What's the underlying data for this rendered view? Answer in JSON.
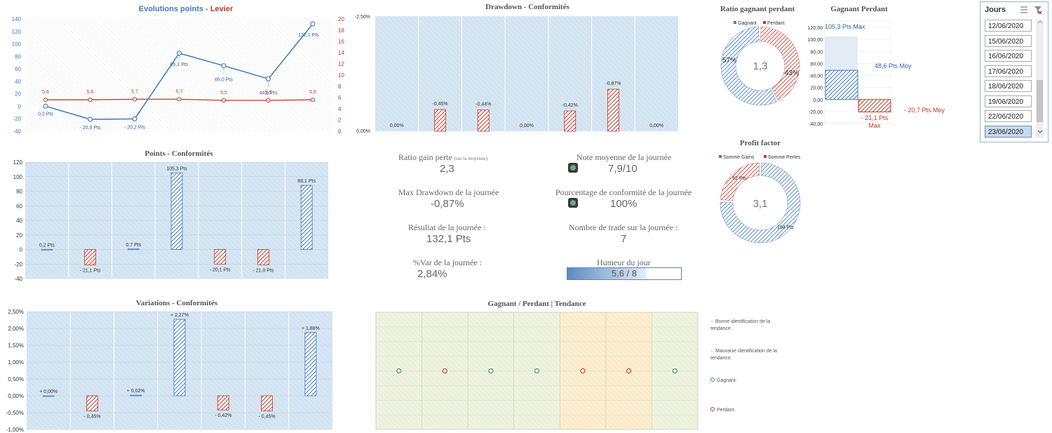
{
  "colors": {
    "blue": "#3f79c6",
    "red": "#c0392b",
    "panel": "#cfe0ef",
    "green": "#3a9a4a"
  },
  "chart_data": [
    {
      "id": "evolution",
      "type": "line",
      "title_part1": "Evolutions points - ",
      "title_part2": "Levier",
      "y_ticks": [
        "140",
        "120",
        "100",
        "80",
        "60",
        "40",
        "20",
        "0",
        "-20",
        "-40"
      ],
      "y2_ticks": [
        "20",
        "18",
        "16",
        "14",
        "12",
        "10",
        "8",
        "6",
        "4",
        "2",
        "0"
      ],
      "ylim": [
        -40,
        140
      ],
      "y2lim": [
        0,
        20
      ],
      "series": [
        {
          "name": "",
          "values": [
            0.2,
            -20.9,
            -20.2,
            85.1,
            65.0,
            44.0,
            132.1
          ],
          "labels": [
            "0,2 Pts",
            "- 20,9 Pts",
            "- 20,2 Pts",
            "85,1 Pts",
            "65,0 Pts",
            "44,0 Pts",
            "132,1 Pts"
          ]
        },
        {
          "name": "",
          "values": [
            5.6,
            5.6,
            5.7,
            5.7,
            5.5,
            5.5,
            5.6
          ],
          "labels": [
            "5,6",
            "5,6",
            "5,7",
            "5,7",
            "5,5",
            "5,5",
            "5,6"
          ]
        }
      ]
    },
    {
      "id": "drawdown",
      "type": "bar",
      "title": "Drawdown - Conformités",
      "y_top_label": "-2,50%",
      "y_bottom_label": "0,00%",
      "ylim": [
        0,
        -2.5
      ],
      "values": [
        0.0,
        -0.45,
        -0.44,
        0.0,
        -0.42,
        -0.87,
        0.0
      ],
      "labels": [
        "0,00%",
        "-0,45%",
        "-0,44%",
        "0,00%",
        "-0,42%",
        "-0,87%",
        "0,00%"
      ]
    },
    {
      "id": "points",
      "type": "bar",
      "title": "Points - Conformités",
      "y_ticks": [
        "120",
        "100",
        "80",
        "60",
        "40",
        "20",
        "0",
        "-20",
        "-40"
      ],
      "ylim": [
        -40,
        120
      ],
      "values": [
        0.2,
        -21.1,
        0.7,
        105.3,
        -20.1,
        -21.0,
        88.1
      ],
      "labels": [
        "0,2 Pts",
        "- 21,1 Pts",
        "0,7 Pts",
        "105,3 Pts",
        "- 20,1 Pts",
        "- 21,0 Pts",
        "88,1 Pts"
      ]
    },
    {
      "id": "variations",
      "type": "bar",
      "title": "Variations - Conformités",
      "y_ticks": [
        "2,50%",
        "2,00%",
        "1,50%",
        "1,00%",
        "0,50%",
        "0,00%",
        "-0,50%",
        "-1,00%"
      ],
      "ylim": [
        -1.0,
        2.5
      ],
      "values": [
        0.0,
        -0.45,
        0.02,
        2.27,
        -0.42,
        -0.45,
        1.88
      ],
      "labels": [
        "+ 0,00%",
        "- 0,45%",
        "+ 0,02%",
        "+ 2,27%",
        "- 0,42%",
        "- 0,45%",
        "+ 1,88%"
      ]
    },
    {
      "id": "ratio",
      "type": "pie",
      "title": "Ratio gagnant perdant",
      "legend": [
        "Gagnant",
        "Perdant"
      ],
      "values": [
        57,
        43
      ],
      "labels": [
        "57%",
        "43%"
      ],
      "center": "1,3"
    },
    {
      "id": "gagnant-perdant",
      "type": "bar",
      "title": "Gagnant Perdant",
      "y_ticks": [
        "120,00",
        "100,00",
        "80,00",
        "60,00",
        "40,00",
        "20,00",
        "0,00",
        "-20,00",
        "-40,00"
      ],
      "ylim": [
        -40,
        120
      ],
      "gain_max": 105.3,
      "gain_avg": 48.6,
      "loss_max": -21.1,
      "loss_avg": -20.7,
      "label_gain_max": "105,3 Pts Max",
      "label_gain_avg": "48,6 Pts Moy",
      "label_loss_max_1": "- 21,1 Pts",
      "label_loss_max_2": "Max",
      "label_loss_avg": "- 20,7 Pts Moy"
    },
    {
      "id": "profit",
      "type": "pie",
      "title": "Profit factor",
      "legend": [
        "Somme Gains",
        "Somme Pertes"
      ],
      "values": [
        194,
        62
      ],
      "labels": [
        "194 Pts",
        "- 62 Pts"
      ],
      "center": "3,1"
    },
    {
      "id": "tendance",
      "type": "scatter",
      "title": "Gagnant / Perdant | Tendance",
      "points": [
        "win",
        "loss",
        "win",
        "win",
        "loss",
        "loss",
        "win"
      ],
      "zones": [
        "good",
        "good",
        "good",
        "good",
        "bad",
        "bad",
        "good"
      ]
    }
  ],
  "kpis": {
    "ratio_label": "Ratio gain perte",
    "ratio_note": "(sur la moyenne)",
    "ratio_value": "2,3",
    "note_label": "Note moyenne de la journée",
    "note_value": "7,9/10",
    "maxdd_label": "Max Drawdown de la journée",
    "maxdd_value": "-0,87%",
    "conf_label": "Pourcentage de conformité de la journée",
    "conf_value": "100%",
    "result_label": "Résultat de la journée :",
    "result_value": "132,1 Pts",
    "trades_label": "Nombre de trade sur la journée :",
    "trades_value": "7",
    "var_label": "%Var de la journée :",
    "var_value": "2,84%",
    "mood_label": "Humeur du jour",
    "mood_value": "5,6 / 8",
    "mood_level": 0.7
  },
  "legend_tendance": {
    "good": "Bonne identification de la tendance.",
    "bad": "Mauvaise identification de la tendance.",
    "win": "Gagnant.",
    "loss": "Perdant."
  },
  "slicer": {
    "title": "Jours",
    "items": [
      "12/06/2020",
      "15/06/2020",
      "16/06/2020",
      "17/06/2020",
      "18/06/2020",
      "19/06/2020",
      "22/06/2020",
      "23/06/2020"
    ],
    "selected": "23/06/2020"
  }
}
